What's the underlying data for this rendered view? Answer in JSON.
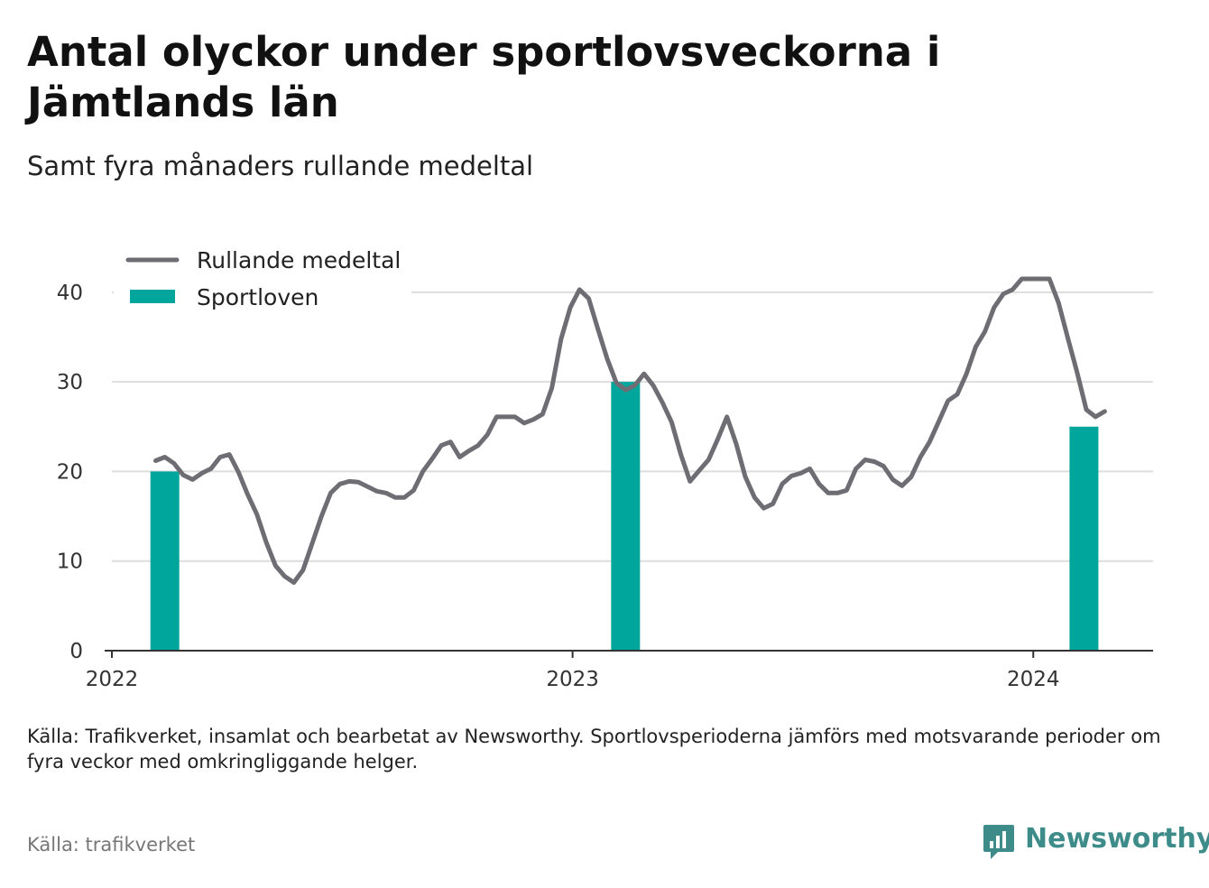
{
  "title": "Antal olyckor under sportlovsveckorna i Jämtlands län",
  "subtitle": "Samt fyra månaders rullande medeltal",
  "note": "Källa: Trafikverket, insamlat och bearbetat av Newsworthy. Sportlovsperioderna jämförs med motsvarande perioder om fyra veckor med omkringliggande helger.",
  "source": "Källa: trafikverket",
  "brand": {
    "name": "Newsworthy",
    "icon": "newsworthy-chart-bubble-icon"
  },
  "colors": {
    "line": "#6e6d73",
    "bar": "#00a69c",
    "grid": "#dddddd",
    "axis": "#333333",
    "brand": "#3d8c8a"
  },
  "chart_data": {
    "type": "bar",
    "x_unit": "year (decimal)",
    "xlim": [
      2022.0,
      2024.26
    ],
    "ylim": [
      0,
      42
    ],
    "yticks": [
      0,
      10,
      20,
      30,
      40
    ],
    "xticks": [
      {
        "value": 2022,
        "label": "2022"
      },
      {
        "value": 2023,
        "label": "2023"
      },
      {
        "value": 2024,
        "label": "2024"
      }
    ],
    "grid": true,
    "legend_position": "top-left",
    "legend": [
      "Rullande medeltal",
      "Sportloven"
    ],
    "series": [
      {
        "name": "Sportloven",
        "type": "bar",
        "values": [
          {
            "x": 2022.115,
            "y": 20
          },
          {
            "x": 2023.115,
            "y": 30
          },
          {
            "x": 2024.11,
            "y": 25
          }
        ]
      },
      {
        "name": "Rullande medeltal",
        "type": "line",
        "values": [
          [
            2022.095,
            21.2
          ],
          [
            2022.115,
            21.6
          ],
          [
            2022.135,
            20.9
          ],
          [
            2022.155,
            19.6
          ],
          [
            2022.175,
            19.1
          ],
          [
            2022.195,
            19.8
          ],
          [
            2022.215,
            20.3
          ],
          [
            2022.235,
            21.6
          ],
          [
            2022.255,
            21.9
          ],
          [
            2022.275,
            19.9
          ],
          [
            2022.295,
            17.4
          ],
          [
            2022.315,
            15.2
          ],
          [
            2022.335,
            12.1
          ],
          [
            2022.355,
            9.5
          ],
          [
            2022.375,
            8.3
          ],
          [
            2022.395,
            7.6
          ],
          [
            2022.415,
            9.0
          ],
          [
            2022.435,
            12.0
          ],
          [
            2022.455,
            15.0
          ],
          [
            2022.475,
            17.6
          ],
          [
            2022.495,
            18.6
          ],
          [
            2022.515,
            18.9
          ],
          [
            2022.535,
            18.8
          ],
          [
            2022.555,
            18.3
          ],
          [
            2022.575,
            17.8
          ],
          [
            2022.595,
            17.6
          ],
          [
            2022.615,
            17.1
          ],
          [
            2022.635,
            17.1
          ],
          [
            2022.655,
            17.9
          ],
          [
            2022.675,
            20.0
          ],
          [
            2022.695,
            21.4
          ],
          [
            2022.715,
            22.9
          ],
          [
            2022.735,
            23.3
          ],
          [
            2022.755,
            21.6
          ],
          [
            2022.775,
            22.3
          ],
          [
            2022.795,
            22.9
          ],
          [
            2022.815,
            24.1
          ],
          [
            2022.835,
            26.1
          ],
          [
            2022.855,
            26.1
          ],
          [
            2022.875,
            26.1
          ],
          [
            2022.895,
            25.4
          ],
          [
            2022.915,
            25.8
          ],
          [
            2022.935,
            26.4
          ],
          [
            2022.955,
            29.3
          ],
          [
            2022.975,
            34.8
          ],
          [
            2022.995,
            38.3
          ],
          [
            2023.015,
            40.3
          ],
          [
            2023.035,
            39.3
          ],
          [
            2023.055,
            35.9
          ],
          [
            2023.075,
            32.6
          ],
          [
            2023.095,
            29.9
          ],
          [
            2023.115,
            29.1
          ],
          [
            2023.135,
            29.6
          ],
          [
            2023.155,
            30.9
          ],
          [
            2023.175,
            29.6
          ],
          [
            2023.195,
            27.7
          ],
          [
            2023.215,
            25.5
          ],
          [
            2023.235,
            21.9
          ],
          [
            2023.255,
            18.9
          ],
          [
            2023.275,
            20.1
          ],
          [
            2023.295,
            21.3
          ],
          [
            2023.315,
            23.6
          ],
          [
            2023.335,
            26.1
          ],
          [
            2023.355,
            23.1
          ],
          [
            2023.375,
            19.4
          ],
          [
            2023.395,
            17.1
          ],
          [
            2023.415,
            15.9
          ],
          [
            2023.435,
            16.4
          ],
          [
            2023.455,
            18.6
          ],
          [
            2023.475,
            19.5
          ],
          [
            2023.495,
            19.8
          ],
          [
            2023.515,
            20.3
          ],
          [
            2023.535,
            18.6
          ],
          [
            2023.555,
            17.6
          ],
          [
            2023.575,
            17.6
          ],
          [
            2023.595,
            17.9
          ],
          [
            2023.615,
            20.3
          ],
          [
            2023.635,
            21.3
          ],
          [
            2023.655,
            21.1
          ],
          [
            2023.675,
            20.6
          ],
          [
            2023.695,
            19.1
          ],
          [
            2023.715,
            18.4
          ],
          [
            2023.735,
            19.4
          ],
          [
            2023.755,
            21.6
          ],
          [
            2023.775,
            23.3
          ],
          [
            2023.795,
            25.6
          ],
          [
            2023.815,
            27.9
          ],
          [
            2023.835,
            28.6
          ],
          [
            2023.855,
            30.9
          ],
          [
            2023.875,
            33.9
          ],
          [
            2023.895,
            35.6
          ],
          [
            2023.915,
            38.3
          ],
          [
            2023.935,
            39.8
          ],
          [
            2023.955,
            40.3
          ],
          [
            2023.975,
            41.5
          ],
          [
            2023.995,
            41.5
          ],
          [
            2024.015,
            41.5
          ],
          [
            2024.035,
            41.5
          ],
          [
            2024.055,
            38.8
          ],
          [
            2024.075,
            34.9
          ],
          [
            2024.095,
            31.1
          ],
          [
            2024.115,
            26.9
          ],
          [
            2024.135,
            26.1
          ],
          [
            2024.155,
            26.7
          ]
        ]
      }
    ]
  }
}
